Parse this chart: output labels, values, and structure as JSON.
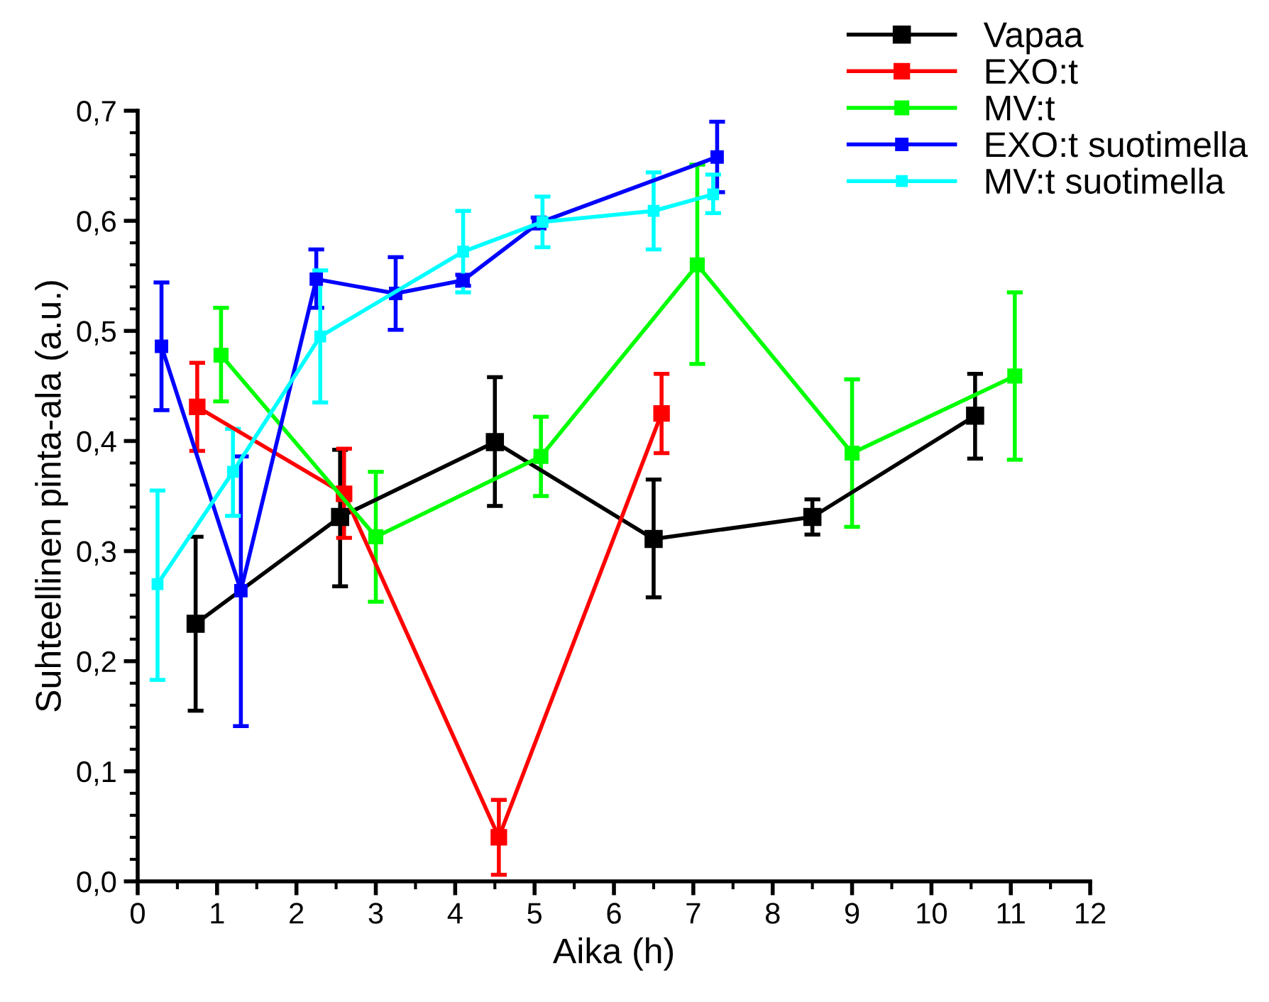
{
  "chart_data": {
    "type": "line",
    "xlabel": "Aika (h)",
    "ylabel": "Suhteellinen pinta-ala (a.u.)",
    "xlim": [
      0,
      12
    ],
    "ylim": [
      0,
      0.7
    ],
    "xticks": [
      0,
      1,
      2,
      3,
      4,
      5,
      6,
      7,
      8,
      9,
      10,
      11,
      12
    ],
    "yticks": [
      {
        "value": 0,
        "label": "0,0"
      },
      {
        "value": 0.1,
        "label": "0,1"
      },
      {
        "value": 0.2,
        "label": "0,2"
      },
      {
        "value": 0.3,
        "label": "0,3"
      },
      {
        "value": 0.4,
        "label": "0,4"
      },
      {
        "value": 0.5,
        "label": "0,5"
      },
      {
        "value": 0.6,
        "label": "0,6"
      },
      {
        "value": 0.7,
        "label": "0,7"
      }
    ],
    "legend": "top right",
    "marker": "square",
    "line_style": "solid",
    "grid": false,
    "series": [
      {
        "name": "Vapaa",
        "color": "#000000",
        "x": [
          0.73,
          2.55,
          4.5,
          6.5,
          8.5,
          10.55
        ],
        "values": [
          0.234,
          0.331,
          0.399,
          0.311,
          0.331,
          0.423
        ],
        "errors": [
          [
            0.155,
            0.313
          ],
          [
            0.268,
            0.392
          ],
          [
            0.341,
            0.458
          ],
          [
            0.258,
            0.365
          ],
          [
            0.315,
            0.347
          ],
          [
            0.384,
            0.461
          ]
        ]
      },
      {
        "name": "EXO:t",
        "color": "#ff0000",
        "x": [
          0.75,
          2.6,
          4.55,
          6.6
        ],
        "values": [
          0.431,
          0.352,
          0.04,
          0.425
        ],
        "errors": [
          [
            0.391,
            0.471
          ],
          [
            0.312,
            0.393
          ],
          [
            0.006,
            0.074
          ],
          [
            0.389,
            0.461
          ]
        ]
      },
      {
        "name": "MV:t",
        "color": "#00ff00",
        "x": [
          1.05,
          3.0,
          5.08,
          7.05,
          9.0,
          11.05
        ],
        "values": [
          0.478,
          0.313,
          0.386,
          0.56,
          0.389,
          0.459
        ],
        "errors": [
          [
            0.436,
            0.521
          ],
          [
            0.254,
            0.372
          ],
          [
            0.35,
            0.422
          ],
          [
            0.47,
            0.651
          ],
          [
            0.322,
            0.456
          ],
          [
            0.383,
            0.535
          ]
        ]
      },
      {
        "name": "EXO:t suotimella",
        "color": "#0000ff",
        "x": [
          0.3,
          1.3,
          2.25,
          3.25,
          4.1,
          5.05,
          7.3
        ],
        "values": [
          0.486,
          0.264,
          0.547,
          0.534,
          0.546,
          0.598,
          0.658
        ],
        "errors": [
          [
            0.428,
            0.544
          ],
          [
            0.141,
            0.386
          ],
          [
            0.521,
            0.574
          ],
          [
            0.501,
            0.567
          ],
          [
            0.541,
            0.551
          ],
          [
            0.593,
            0.603
          ],
          [
            0.626,
            0.69
          ]
        ]
      },
      {
        "name": "MV:t suotimella",
        "color": "#00ffff",
        "x": [
          0.25,
          1.2,
          2.3,
          4.1,
          5.1,
          6.5,
          7.25
        ],
        "values": [
          0.27,
          0.372,
          0.495,
          0.572,
          0.599,
          0.609,
          0.624
        ],
        "errors": [
          [
            0.183,
            0.355
          ],
          [
            0.332,
            0.411
          ],
          [
            0.435,
            0.555
          ],
          [
            0.535,
            0.609
          ],
          [
            0.576,
            0.622
          ],
          [
            0.574,
            0.644
          ],
          [
            0.607,
            0.642
          ]
        ]
      }
    ]
  }
}
